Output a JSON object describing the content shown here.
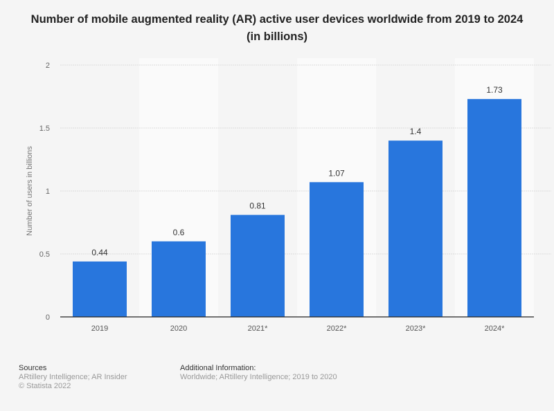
{
  "chart_data": {
    "type": "bar",
    "title": "Number of mobile augmented reality (AR) active user devices worldwide from 2019 to 2024 (in billions)",
    "categories": [
      "2019",
      "2020",
      "2021*",
      "2022*",
      "2023*",
      "2024*"
    ],
    "values": [
      0.44,
      0.6,
      0.81,
      1.07,
      1.4,
      1.73
    ],
    "data_labels": [
      "0.44",
      "0.6",
      "0.81",
      "1.07",
      "1.4",
      "1.73"
    ],
    "xlabel": "",
    "ylabel": "Number of users in billions",
    "ylim": [
      0,
      2
    ],
    "yticks": [
      "0",
      "0.5",
      "1",
      "1.5",
      "2"
    ],
    "grid": true,
    "bar_color": "#2876dd"
  },
  "footer": {
    "sources_heading": "Sources",
    "sources_text": "ARtillery Intelligence; AR Insider",
    "copyright": "© Statista 2022",
    "additional_heading": "Additional Information:",
    "additional_text": "Worldwide; ARtillery Intelligence; 2019 to 2020"
  }
}
